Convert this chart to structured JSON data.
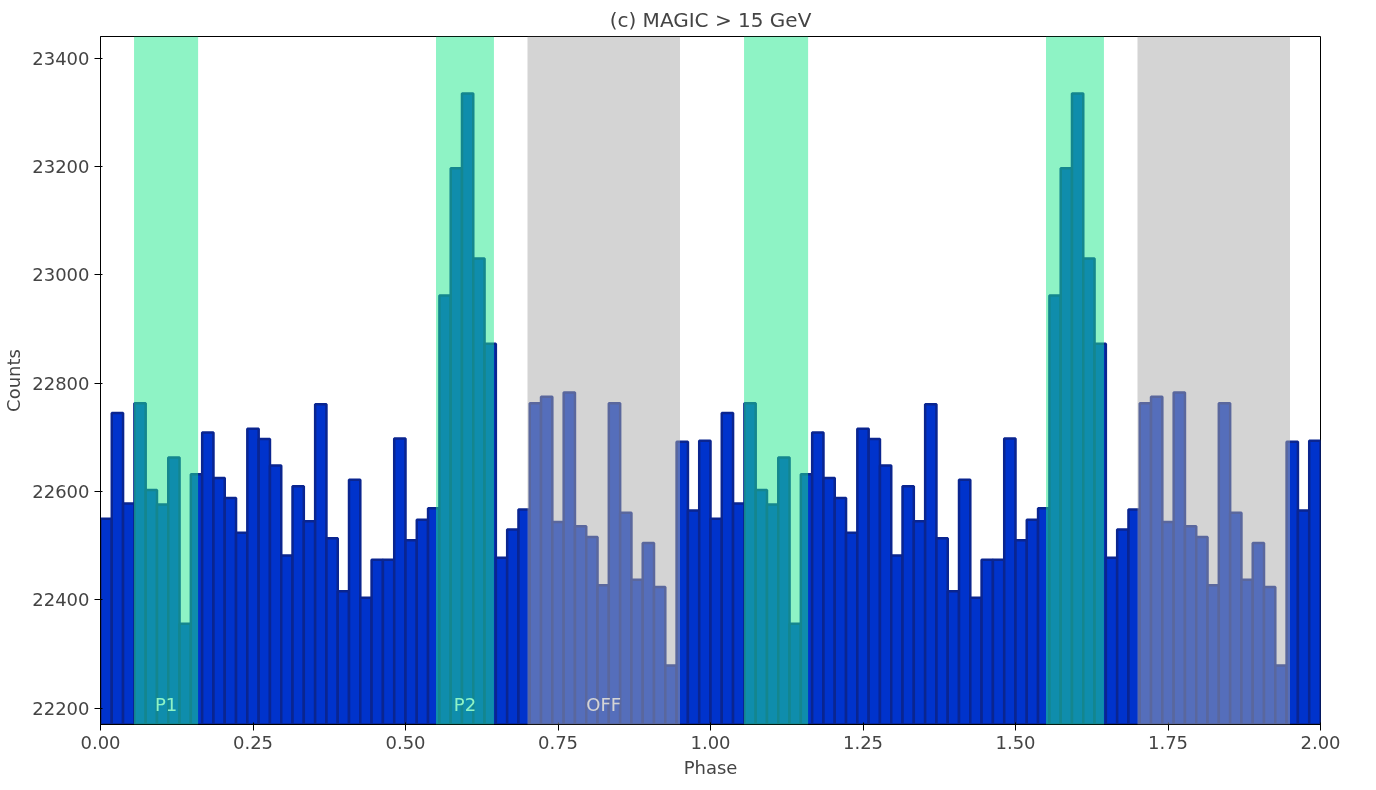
{
  "chart_data": {
    "type": "histogram",
    "title": "(c) MAGIC > 15 GeV",
    "xlabel": "Phase",
    "ylabel": "Counts",
    "bins": [
      0,
      0.0185,
      0.037,
      0.0556,
      0.0741,
      0.0926,
      0.1111,
      0.1296,
      0.1481,
      0.1667,
      0.1852,
      0.2037,
      0.2222,
      0.2407,
      0.2593,
      0.2778,
      0.2963,
      0.3148,
      0.3333,
      0.3519,
      0.3704,
      0.3889,
      0.4074,
      0.4259,
      0.4444,
      0.463,
      0.4815,
      0.5,
      0.5185,
      0.537,
      0.5556,
      0.5741,
      0.5926,
      0.6111,
      0.6296,
      0.6481,
      0.6667,
      0.6852,
      0.7037,
      0.7222,
      0.7407,
      0.7593,
      0.7778,
      0.7963,
      0.8148,
      0.8333,
      0.8519,
      0.8704,
      0.8889,
      0.9074,
      0.9259,
      0.9444,
      0.963,
      0.9815,
      1,
      1.0185,
      1.037,
      1.0556,
      1.0741,
      1.0926,
      1.1111,
      1.1296,
      1.1481,
      1.1667,
      1.1852,
      1.2037,
      1.2222,
      1.2407,
      1.2593,
      1.2778,
      1.2963,
      1.3148,
      1.3333,
      1.3519,
      1.3704,
      1.3889,
      1.4074,
      1.4259,
      1.4444,
      1.463,
      1.4815,
      1.5,
      1.5185,
      1.537,
      1.5556,
      1.5741,
      1.5926,
      1.6111,
      1.6296,
      1.6481,
      1.6667,
      1.6852,
      1.7037,
      1.7222,
      1.7407,
      1.7593,
      1.7778,
      1.7963,
      1.8148,
      1.8333,
      1.8519,
      1.8704,
      1.8889,
      1.9074,
      1.9259,
      1.9444,
      1.963,
      1.9815,
      2
    ],
    "values": [
      22550,
      22745,
      22578,
      22763,
      22603,
      22576,
      22663,
      22356,
      22632,
      22709,
      22625,
      22588,
      22524,
      22716,
      22697,
      22648,
      22482,
      22610,
      22545,
      22761,
      22514,
      22416,
      22622,
      22404,
      22474,
      22474,
      22698,
      22510,
      22548,
      22569,
      22962,
      23197,
      23335,
      23030,
      22873,
      22478,
      22530,
      22567,
      22763,
      22775,
      22544,
      22783,
      22536,
      22516,
      22427,
      22763,
      22561,
      22437,
      22505,
      22424,
      22279,
      22692,
      22565,
      22694,
      22550,
      22745,
      22578,
      22763,
      22603,
      22576,
      22663,
      22356,
      22632,
      22709,
      22625,
      22588,
      22524,
      22716,
      22697,
      22648,
      22482,
      22610,
      22545,
      22761,
      22514,
      22416,
      22622,
      22404,
      22474,
      22474,
      22698,
      22510,
      22548,
      22569,
      22962,
      23197,
      23335,
      23030,
      22873,
      22478,
      22530,
      22567,
      22763,
      22775,
      22544,
      22783,
      22536,
      22516,
      22427,
      22763,
      22561,
      22437,
      22505,
      22424,
      22279,
      22692,
      22565,
      22694
    ],
    "color": "#0033cc",
    "xlim": [
      0,
      2
    ],
    "ylim": [
      22170,
      23440
    ],
    "xticks": [
      {
        "value": 0,
        "label": "0.00"
      },
      {
        "value": 0.25,
        "label": "0.25"
      },
      {
        "value": 0.5,
        "label": "0.50"
      },
      {
        "value": 0.75,
        "label": "0.75"
      },
      {
        "value": 1,
        "label": "1.00"
      },
      {
        "value": 1.25,
        "label": "1.25"
      },
      {
        "value": 1.5,
        "label": "1.50"
      },
      {
        "value": 1.75,
        "label": "1.75"
      },
      {
        "value": 2,
        "label": "2.00"
      }
    ],
    "yticks": [
      22200,
      22400,
      22600,
      22800,
      23000,
      23200,
      23400
    ],
    "bands": [
      {
        "axis": "x",
        "from": 0.055,
        "to": 0.16,
        "label": "P1",
        "color": "#1ee88c"
      },
      {
        "axis": "x",
        "from": 0.55,
        "to": 0.645,
        "label": "P2",
        "color": "#1ee88c"
      },
      {
        "axis": "x",
        "from": 0.7,
        "to": 0.95,
        "label": "OFF",
        "color": "#a9a9a9"
      },
      {
        "axis": "x",
        "from": 1.055,
        "to": 1.16,
        "color": "#1ee88c"
      },
      {
        "axis": "x",
        "from": 1.55,
        "to": 1.645,
        "color": "#1ee88c"
      },
      {
        "axis": "x",
        "from": 1.7,
        "to": 1.95,
        "color": "#a9a9a9"
      }
    ],
    "grid": false
  }
}
